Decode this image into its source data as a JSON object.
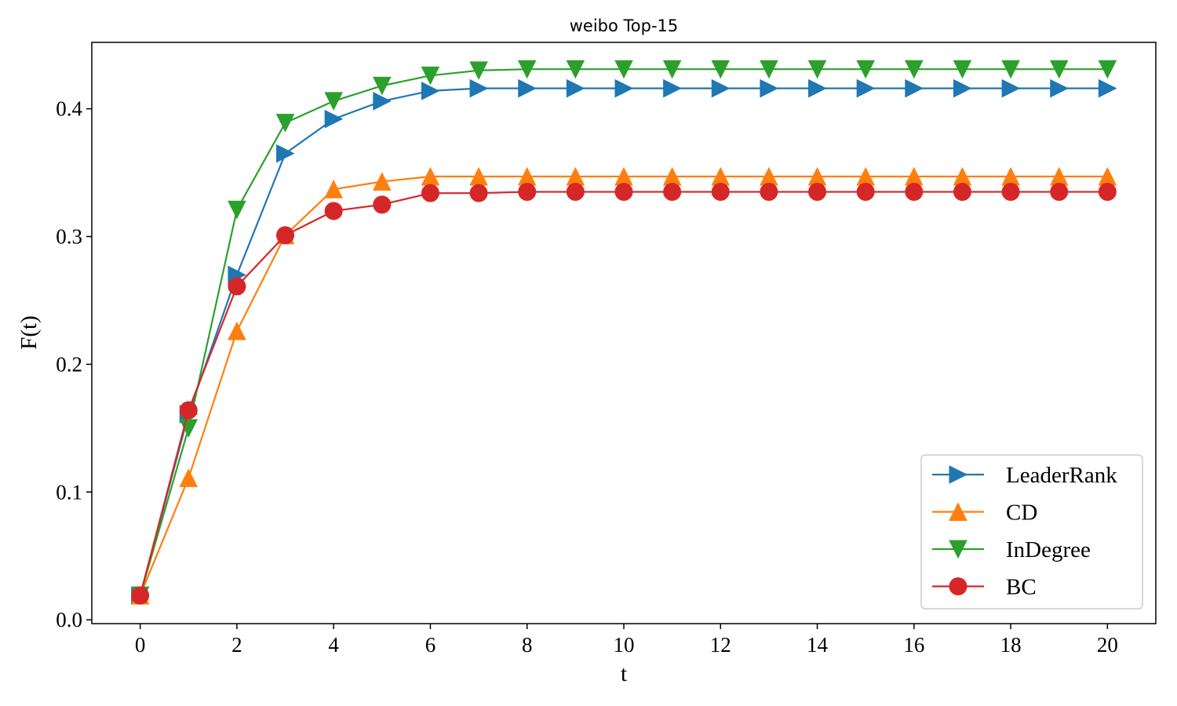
{
  "chart_data": {
    "type": "line",
    "title": "weibo Top-15",
    "xlabel": "t",
    "ylabel": "F(t)",
    "xlim": [
      -1,
      21
    ],
    "ylim": [
      -0.003,
      0.452
    ],
    "x_ticks": [
      0,
      2,
      4,
      6,
      8,
      10,
      12,
      14,
      16,
      18,
      20
    ],
    "y_ticks": [
      0.0,
      0.1,
      0.2,
      0.3,
      0.4
    ],
    "y_tick_labels": [
      "0.0",
      "0.1",
      "0.2",
      "0.3",
      "0.4"
    ],
    "grid": false,
    "legend_position": "lower-right",
    "x": [
      0,
      1,
      2,
      3,
      4,
      5,
      6,
      7,
      8,
      9,
      10,
      11,
      12,
      13,
      14,
      15,
      16,
      17,
      18,
      19,
      20
    ],
    "series": [
      {
        "name": "LeaderRank",
        "color": "#1f77b4",
        "marker": "triangle-right",
        "values": [
          0.019,
          0.161,
          0.27,
          0.365,
          0.392,
          0.406,
          0.414,
          0.416,
          0.416,
          0.416,
          0.416,
          0.416,
          0.416,
          0.416,
          0.416,
          0.416,
          0.416,
          0.416,
          0.416,
          0.416,
          0.416
        ]
      },
      {
        "name": "CD",
        "color": "#ff7f0e",
        "marker": "triangle-up",
        "values": [
          0.019,
          0.111,
          0.226,
          0.301,
          0.337,
          0.343,
          0.347,
          0.347,
          0.347,
          0.347,
          0.347,
          0.347,
          0.347,
          0.347,
          0.347,
          0.347,
          0.347,
          0.347,
          0.347,
          0.347,
          0.347
        ]
      },
      {
        "name": "InDegree",
        "color": "#2ca02c",
        "marker": "triangle-down",
        "values": [
          0.019,
          0.15,
          0.321,
          0.389,
          0.406,
          0.418,
          0.426,
          0.43,
          0.431,
          0.431,
          0.431,
          0.431,
          0.431,
          0.431,
          0.431,
          0.431,
          0.431,
          0.431,
          0.431,
          0.431,
          0.431
        ]
      },
      {
        "name": "BC",
        "color": "#d62728",
        "marker": "circle",
        "values": [
          0.019,
          0.164,
          0.261,
          0.301,
          0.32,
          0.325,
          0.334,
          0.334,
          0.335,
          0.335,
          0.335,
          0.335,
          0.335,
          0.335,
          0.335,
          0.335,
          0.335,
          0.335,
          0.335,
          0.335,
          0.335
        ]
      }
    ]
  }
}
